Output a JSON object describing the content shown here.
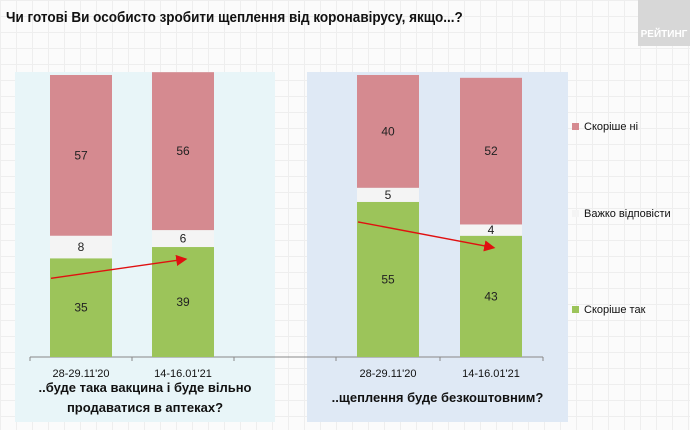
{
  "title": "Чи готові Ви особисто зробити щеплення від коронавірусу, якщо...?",
  "logo": "РЕЙТИНГ",
  "colors": {
    "no": "#d58a90",
    "hard": "#f4f4f4",
    "yes": "#9cc45a",
    "arrow": "#e01010",
    "panel1": "#e8f5f8",
    "panel2": "#dfe9f5"
  },
  "chart_data": {
    "type": "bar",
    "stacked": true,
    "ylim": [
      0,
      100
    ],
    "legend": [
      {
        "key": "no",
        "label": "Скоріше  ні"
      },
      {
        "key": "hard",
        "label": "Важко відповісти"
      },
      {
        "key": "yes",
        "label": "Скоріше  так"
      }
    ],
    "legend_placement": "right",
    "groups": [
      {
        "label": "..буде така вакцина і буде вільно продаватися в аптеках?",
        "label_lines": [
          "..буде така вакцина і буде вільно",
          "продаватися в аптеках?"
        ],
        "categories": [
          "28-29.11'20",
          "14-16.01'21"
        ],
        "series": [
          {
            "key": "yes",
            "values": [
              35,
              39
            ]
          },
          {
            "key": "hard",
            "values": [
              8,
              6
            ]
          },
          {
            "key": "no",
            "values": [
              57,
              56
            ]
          }
        ]
      },
      {
        "label": "..щеплення буде безкоштовним?",
        "label_lines": [
          "..щеплення буде безкоштовним?"
        ],
        "categories": [
          "28-29.11'20",
          "14-16.01'21"
        ],
        "series": [
          {
            "key": "yes",
            "values": [
              55,
              43
            ]
          },
          {
            "key": "hard",
            "values": [
              5,
              4
            ]
          },
          {
            "key": "no",
            "values": [
              40,
              52
            ]
          }
        ]
      }
    ]
  }
}
